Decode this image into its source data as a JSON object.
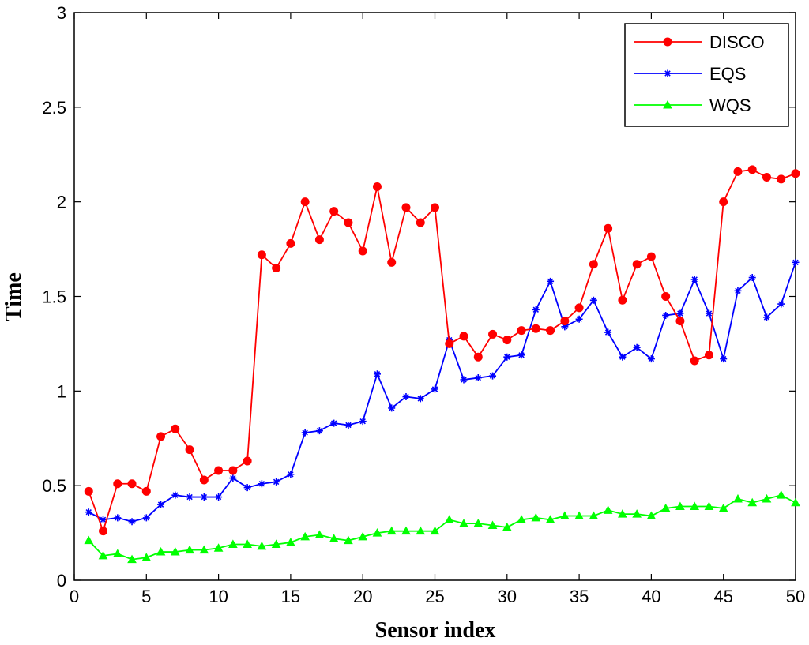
{
  "chart_data": {
    "type": "line",
    "title": "",
    "xlabel": "Sensor index",
    "ylabel": "Time",
    "xlim": [
      0,
      50
    ],
    "ylim": [
      0,
      3
    ],
    "xticks": [
      0,
      5,
      10,
      15,
      20,
      25,
      30,
      35,
      40,
      45,
      50
    ],
    "yticks": [
      0,
      0.5,
      1,
      1.5,
      2,
      2.5,
      3
    ],
    "xtick_labels": [
      "0",
      "5",
      "10",
      "15",
      "20",
      "25",
      "30",
      "35",
      "40",
      "45",
      "50"
    ],
    "ytick_labels": [
      "0",
      "0.5",
      "1",
      "1.5",
      "2",
      "2.5",
      "3"
    ],
    "grid": false,
    "legend_position": "top-right",
    "x": [
      1,
      2,
      3,
      4,
      5,
      6,
      7,
      8,
      9,
      10,
      11,
      12,
      13,
      14,
      15,
      16,
      17,
      18,
      19,
      20,
      21,
      22,
      23,
      24,
      25,
      26,
      27,
      28,
      29,
      30,
      31,
      32,
      33,
      34,
      35,
      36,
      37,
      38,
      39,
      40,
      41,
      42,
      43,
      44,
      45,
      46,
      47,
      48,
      49,
      50
    ],
    "series": [
      {
        "name": "DISCO",
        "color": "#ff0000",
        "marker": "circle",
        "values": [
          0.47,
          0.26,
          0.51,
          0.51,
          0.47,
          0.76,
          0.8,
          0.69,
          0.53,
          0.58,
          0.58,
          0.63,
          1.72,
          1.65,
          1.78,
          2.0,
          1.8,
          1.95,
          1.89,
          1.74,
          2.08,
          1.68,
          1.97,
          1.89,
          1.97,
          1.25,
          1.29,
          1.18,
          1.3,
          1.27,
          1.32,
          1.33,
          1.32,
          1.37,
          1.44,
          1.67,
          1.86,
          1.48,
          1.67,
          1.71,
          1.5,
          1.37,
          1.16,
          1.19,
          2.0,
          2.16,
          2.17,
          2.13,
          2.12,
          2.15
        ]
      },
      {
        "name": "EQS",
        "color": "#0000ff",
        "marker": "star",
        "values": [
          0.36,
          0.32,
          0.33,
          0.31,
          0.33,
          0.4,
          0.45,
          0.44,
          0.44,
          0.44,
          0.54,
          0.49,
          0.51,
          0.52,
          0.56,
          0.78,
          0.79,
          0.83,
          0.82,
          0.84,
          1.09,
          0.91,
          0.97,
          0.96,
          1.01,
          1.27,
          1.06,
          1.07,
          1.08,
          1.18,
          1.19,
          1.43,
          1.58,
          1.34,
          1.38,
          1.48,
          1.31,
          1.18,
          1.23,
          1.17,
          1.4,
          1.41,
          1.59,
          1.41,
          1.17,
          1.53,
          1.6,
          1.39,
          1.46,
          1.68
        ]
      },
      {
        "name": "WQS",
        "color": "#00ff00",
        "marker": "triangle",
        "values": [
          0.21,
          0.13,
          0.14,
          0.11,
          0.12,
          0.15,
          0.15,
          0.16,
          0.16,
          0.17,
          0.19,
          0.19,
          0.18,
          0.19,
          0.2,
          0.23,
          0.24,
          0.22,
          0.21,
          0.23,
          0.25,
          0.26,
          0.26,
          0.26,
          0.26,
          0.32,
          0.3,
          0.3,
          0.29,
          0.28,
          0.32,
          0.33,
          0.32,
          0.34,
          0.34,
          0.34,
          0.37,
          0.35,
          0.35,
          0.34,
          0.38,
          0.39,
          0.39,
          0.39,
          0.38,
          0.43,
          0.41,
          0.43,
          0.45,
          0.41
        ]
      }
    ]
  }
}
